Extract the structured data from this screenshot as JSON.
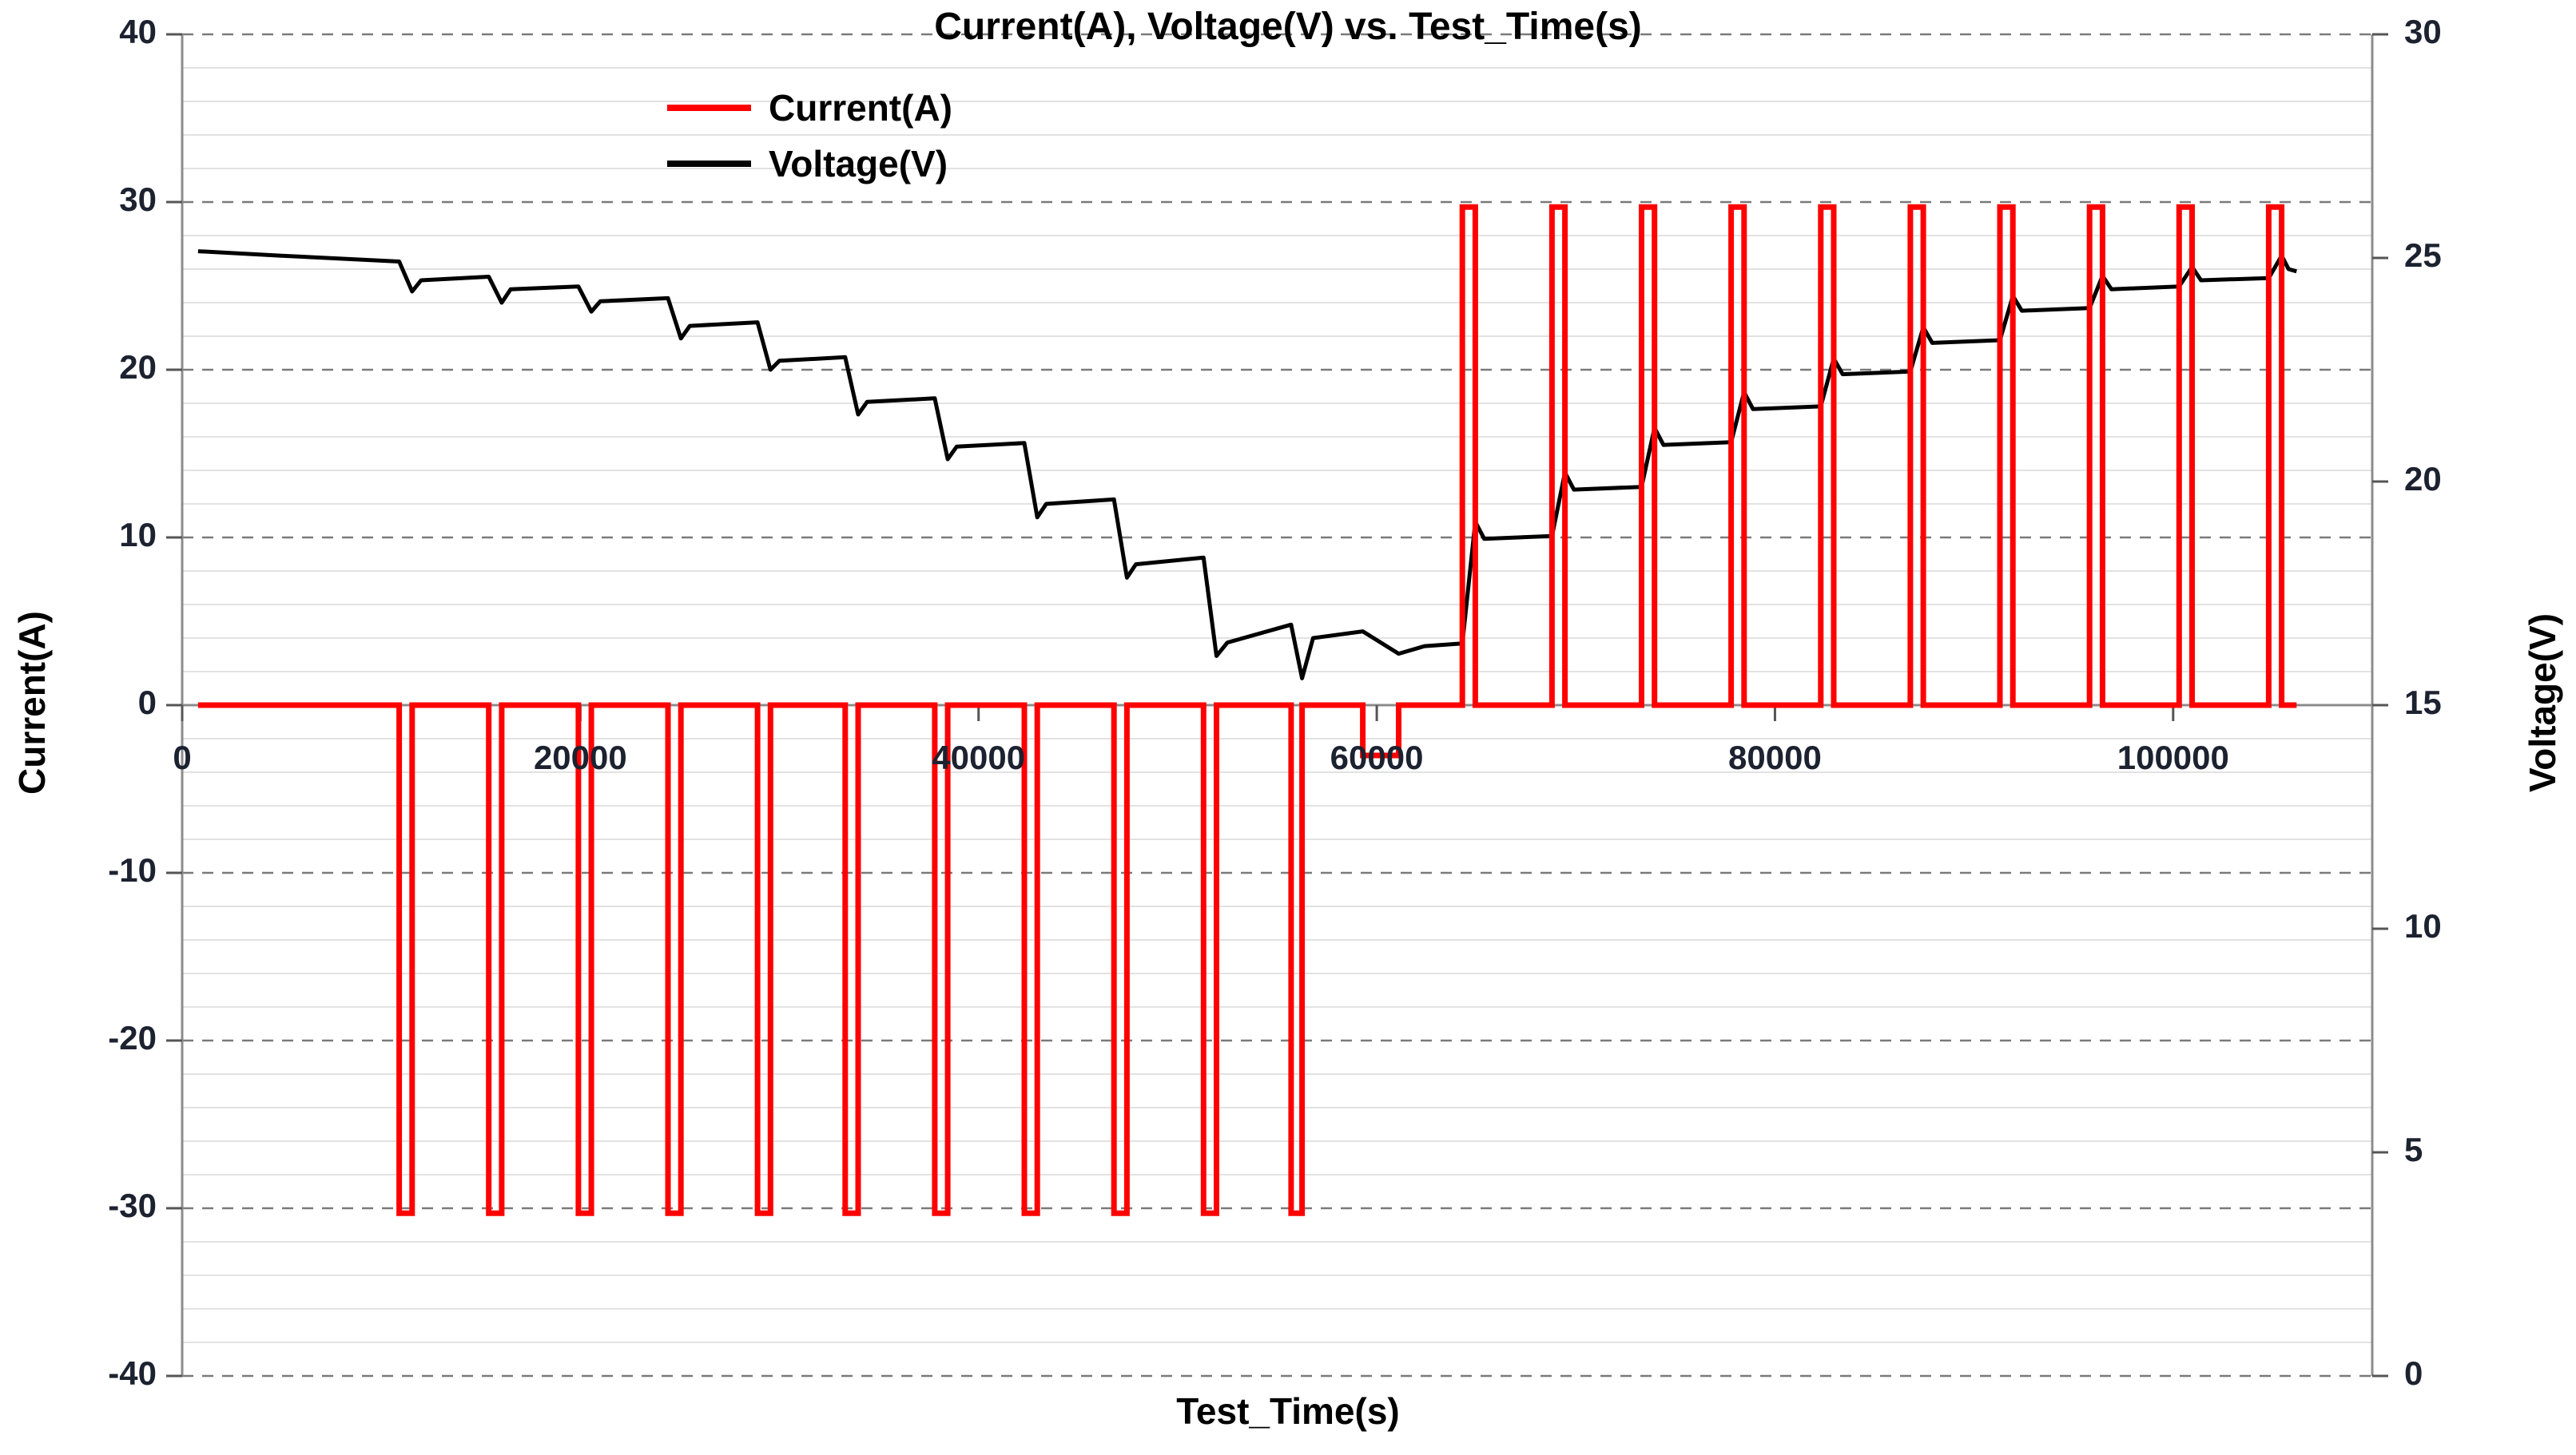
{
  "title": "Current(A), Voltage(V) vs. Test_Time(s)",
  "legend": {
    "items": [
      {
        "label": "Current(A)",
        "color": "#ff0000"
      },
      {
        "label": "Voltage(V)",
        "color": "#000000"
      }
    ]
  },
  "axes": {
    "x": {
      "title": "Test_Time(s)",
      "min": 0,
      "max": 110000,
      "ticks": [
        0,
        20000,
        40000,
        60000,
        80000,
        100000
      ],
      "tick_labels": [
        "0",
        "20000",
        "40000",
        "60000",
        "80000",
        "100000"
      ]
    },
    "y_left": {
      "title": "Current(A)",
      "min": -40,
      "max": 40,
      "major_step": 10,
      "minor_step": 2,
      "ticks": [
        40,
        30,
        20,
        10,
        0,
        -10,
        -20,
        -30,
        -40
      ],
      "tick_labels": [
        "40",
        "30",
        "20",
        "10",
        "0",
        "-10",
        "-20",
        "-30",
        "-40"
      ]
    },
    "y_right": {
      "title": "Voltage(V)",
      "min": 0,
      "max": 30,
      "major_step": 5,
      "ticks": [
        30,
        25,
        20,
        15,
        10,
        5,
        0
      ],
      "tick_labels": [
        "30",
        "25",
        "20",
        "15",
        "10",
        "5",
        "0"
      ]
    }
  },
  "colors": {
    "current_line": "#ff0000",
    "voltage_line": "#000000",
    "grid_minor": "#d9d9d9",
    "grid_major": "#7a7a7a",
    "axis_line": "#8c8c8c",
    "tick_mark": "#555555",
    "background": "#ffffff"
  },
  "chart_data": {
    "type": "line",
    "title": "Current(A), Voltage(V) vs. Test_Time(s)",
    "xlabel": "Test_Time(s)",
    "x_range": [
      0,
      110000
    ],
    "y_left_range": [
      -40,
      40
    ],
    "y_right_range": [
      0,
      30
    ],
    "grid": "horizontal-only",
    "legend_position": "top-left-inside",
    "description": "HPPC battery test: 11 discharge pulses of -30A every ~4500s stepping voltage down from 25V to ~16V, a shallow -3A drain near 60000s, then 10 charge pulses of +29.7A stepping voltage back up to ~24.7V",
    "series": [
      {
        "name": "Current(A)",
        "axis": "left",
        "color": "#ff0000",
        "width": 7,
        "points": [
          [
            800,
            0
          ],
          [
            10900,
            0
          ],
          [
            10900,
            -30.3
          ],
          [
            11550,
            -30.3
          ],
          [
            11550,
            0
          ],
          [
            15400,
            0
          ],
          [
            15400,
            -30.3
          ],
          [
            16050,
            -30.3
          ],
          [
            16050,
            0
          ],
          [
            19900,
            0
          ],
          [
            19900,
            -30.3
          ],
          [
            20550,
            -30.3
          ],
          [
            20550,
            0
          ],
          [
            24400,
            0
          ],
          [
            24400,
            -30.3
          ],
          [
            25050,
            -30.3
          ],
          [
            25050,
            0
          ],
          [
            28900,
            0
          ],
          [
            28900,
            -30.3
          ],
          [
            29550,
            -30.3
          ],
          [
            29550,
            0
          ],
          [
            33300,
            0
          ],
          [
            33300,
            -30.3
          ],
          [
            33950,
            -30.3
          ],
          [
            33950,
            0
          ],
          [
            37800,
            0
          ],
          [
            37800,
            -30.3
          ],
          [
            38450,
            -30.3
          ],
          [
            38450,
            0
          ],
          [
            42300,
            0
          ],
          [
            42300,
            -30.3
          ],
          [
            42950,
            -30.3
          ],
          [
            42950,
            0
          ],
          [
            46800,
            0
          ],
          [
            46800,
            -30.3
          ],
          [
            47450,
            -30.3
          ],
          [
            47450,
            0
          ],
          [
            51300,
            0
          ],
          [
            51300,
            -30.3
          ],
          [
            51950,
            -30.3
          ],
          [
            51950,
            0
          ],
          [
            55700,
            0
          ],
          [
            55700,
            -30.3
          ],
          [
            56250,
            -30.3
          ],
          [
            56250,
            0
          ],
          [
            59300,
            0
          ],
          [
            59300,
            -3
          ],
          [
            61100,
            -3
          ],
          [
            61100,
            0
          ],
          [
            64300,
            0
          ],
          [
            64300,
            29.7
          ],
          [
            64950,
            29.7
          ],
          [
            64950,
            0
          ],
          [
            68800,
            0
          ],
          [
            68800,
            29.7
          ],
          [
            69450,
            29.7
          ],
          [
            69450,
            0
          ],
          [
            73300,
            0
          ],
          [
            73300,
            29.7
          ],
          [
            73950,
            29.7
          ],
          [
            73950,
            0
          ],
          [
            77800,
            0
          ],
          [
            77800,
            29.7
          ],
          [
            78450,
            29.7
          ],
          [
            78450,
            0
          ],
          [
            82300,
            0
          ],
          [
            82300,
            29.7
          ],
          [
            82950,
            29.7
          ],
          [
            82950,
            0
          ],
          [
            86800,
            0
          ],
          [
            86800,
            29.7
          ],
          [
            87450,
            29.7
          ],
          [
            87450,
            0
          ],
          [
            91300,
            0
          ],
          [
            91300,
            29.7
          ],
          [
            91950,
            29.7
          ],
          [
            91950,
            0
          ],
          [
            95800,
            0
          ],
          [
            95800,
            29.7
          ],
          [
            96450,
            29.7
          ],
          [
            96450,
            0
          ],
          [
            100300,
            0
          ],
          [
            100300,
            29.7
          ],
          [
            100950,
            29.7
          ],
          [
            100950,
            0
          ],
          [
            104800,
            0
          ],
          [
            104800,
            29.7
          ],
          [
            105450,
            29.7
          ],
          [
            105450,
            0
          ],
          [
            106200,
            0
          ]
        ]
      },
      {
        "name": "Voltage(V)",
        "axis": "right",
        "color": "#000000",
        "width": 5,
        "points": [
          [
            800,
            25.15
          ],
          [
            5000,
            25.05
          ],
          [
            10900,
            24.92
          ],
          [
            11550,
            24.25
          ],
          [
            12000,
            24.5
          ],
          [
            15400,
            24.58
          ],
          [
            16050,
            24.0
          ],
          [
            16500,
            24.3
          ],
          [
            19900,
            24.36
          ],
          [
            20550,
            23.8
          ],
          [
            21000,
            24.03
          ],
          [
            24400,
            24.1
          ],
          [
            25050,
            23.2
          ],
          [
            25500,
            23.48
          ],
          [
            28900,
            23.56
          ],
          [
            29550,
            22.5
          ],
          [
            30000,
            22.7
          ],
          [
            33300,
            22.78
          ],
          [
            33950,
            21.5
          ],
          [
            34400,
            21.78
          ],
          [
            37800,
            21.86
          ],
          [
            38450,
            20.5
          ],
          [
            38900,
            20.78
          ],
          [
            42300,
            20.86
          ],
          [
            42950,
            19.2
          ],
          [
            43400,
            19.5
          ],
          [
            46800,
            19.6
          ],
          [
            47450,
            17.85
          ],
          [
            47900,
            18.15
          ],
          [
            51300,
            18.3
          ],
          [
            51950,
            16.1
          ],
          [
            52500,
            16.4
          ],
          [
            55700,
            16.8
          ],
          [
            56250,
            15.6
          ],
          [
            56800,
            16.5
          ],
          [
            59300,
            16.65
          ],
          [
            61100,
            16.15
          ],
          [
            62400,
            16.32
          ],
          [
            64300,
            16.38
          ],
          [
            64950,
            19.1
          ],
          [
            65400,
            18.72
          ],
          [
            68800,
            18.78
          ],
          [
            69450,
            20.2
          ],
          [
            69900,
            19.82
          ],
          [
            73300,
            19.88
          ],
          [
            73950,
            21.2
          ],
          [
            74400,
            20.82
          ],
          [
            77800,
            20.88
          ],
          [
            78450,
            22.0
          ],
          [
            78900,
            21.62
          ],
          [
            82300,
            21.68
          ],
          [
            82950,
            22.75
          ],
          [
            83400,
            22.4
          ],
          [
            86800,
            22.46
          ],
          [
            87450,
            23.45
          ],
          [
            87900,
            23.1
          ],
          [
            91300,
            23.16
          ],
          [
            91950,
            24.15
          ],
          [
            92400,
            23.82
          ],
          [
            95800,
            23.88
          ],
          [
            96450,
            24.6
          ],
          [
            96900,
            24.3
          ],
          [
            100300,
            24.36
          ],
          [
            100950,
            24.8
          ],
          [
            101400,
            24.5
          ],
          [
            104800,
            24.55
          ],
          [
            105450,
            25.05
          ],
          [
            105800,
            24.75
          ],
          [
            106200,
            24.7
          ]
        ]
      }
    ]
  }
}
